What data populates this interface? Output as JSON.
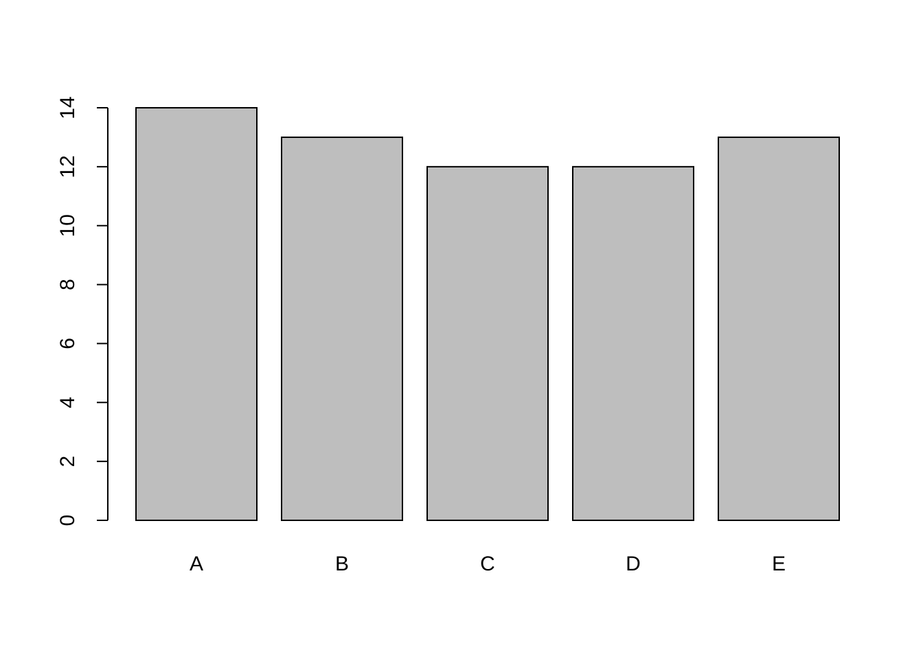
{
  "chart_data": {
    "type": "bar",
    "title": "",
    "xlabel": "",
    "ylabel": "",
    "categories": [
      "A",
      "B",
      "C",
      "D",
      "E"
    ],
    "values": [
      14,
      13,
      12,
      12,
      13
    ],
    "ylim": [
      0,
      14
    ],
    "yticks": [
      0,
      2,
      4,
      6,
      8,
      10,
      12,
      14
    ],
    "ytick_labels": [
      "0",
      "2",
      "4",
      "6",
      "8",
      "10",
      "12",
      "14"
    ],
    "grid": false,
    "legend": "none",
    "colors": {
      "bar_fill": "#bebebe",
      "bar_stroke": "#000000",
      "axis": "#000000",
      "background": "#ffffff"
    }
  }
}
